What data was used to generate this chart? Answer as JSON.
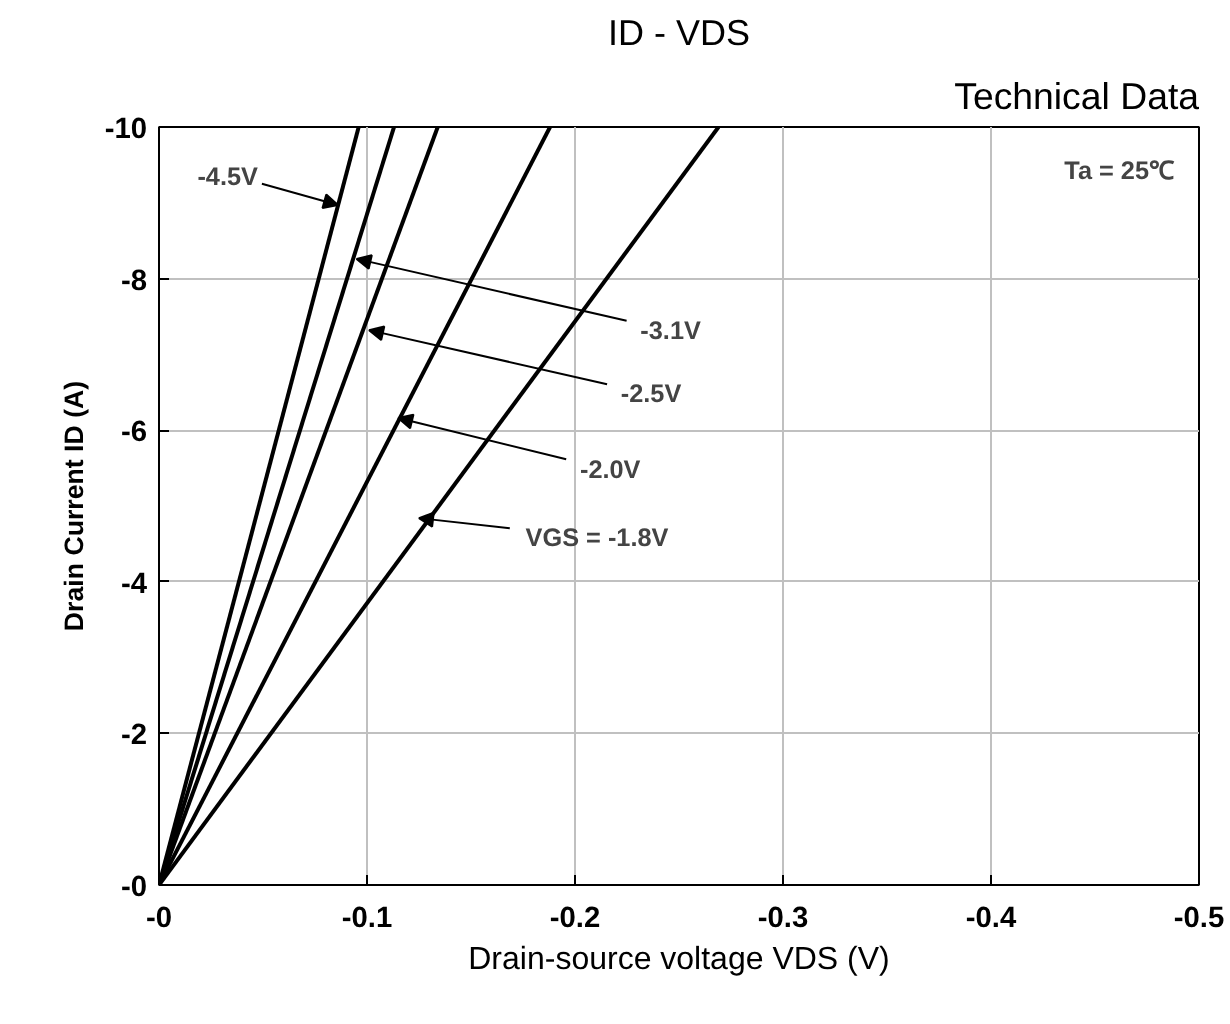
{
  "chart_data": {
    "type": "line",
    "title": "ID - VDS",
    "xlabel": "Drain-source voltage VDS (V)",
    "ylabel": "Drain Current ID (A)",
    "xlim": [
      0,
      -0.5
    ],
    "xticks": [
      {
        "value": 0,
        "label": "-0"
      },
      -0.1,
      -0.2,
      -0.3,
      -0.4,
      -0.5
    ],
    "ylim": [
      0,
      -10
    ],
    "yticks": [
      {
        "value": 0,
        "label": "-0"
      },
      -2,
      -4,
      -6,
      -8,
      -10
    ],
    "grid": true,
    "marker": "none",
    "line_style": "solid",
    "series": [
      {
        "color": "#000000",
        "x": [
          0,
          -0.096
        ],
        "values": [
          0,
          -10
        ]
      },
      {
        "color": "#000000",
        "x": [
          0,
          -0.113
        ],
        "values": [
          0,
          -10
        ]
      },
      {
        "color": "#000000",
        "x": [
          0,
          -0.134
        ],
        "values": [
          0,
          -10
        ]
      },
      {
        "color": "#000000",
        "x": [
          0,
          -0.188
        ],
        "values": [
          0,
          -10
        ]
      },
      {
        "color": "#000000",
        "x": [
          0,
          -0.269
        ],
        "values": [
          0,
          -10
        ]
      }
    ],
    "annotations": [
      {
        "text": "-4.5V",
        "x": -0.086,
        "y": -8.97
      },
      {
        "text": "-3.1V",
        "x": -0.095,
        "y": -8.26
      },
      {
        "text": "-2.5V",
        "x": -0.101,
        "y": -7.32
      },
      {
        "text": "-2.0V",
        "x": -0.115,
        "y": -6.16
      },
      {
        "text": "VGS = -1.8V",
        "x": -0.125,
        "y": -4.84
      },
      "Ta = 25℃",
      "Technical Data"
    ]
  }
}
